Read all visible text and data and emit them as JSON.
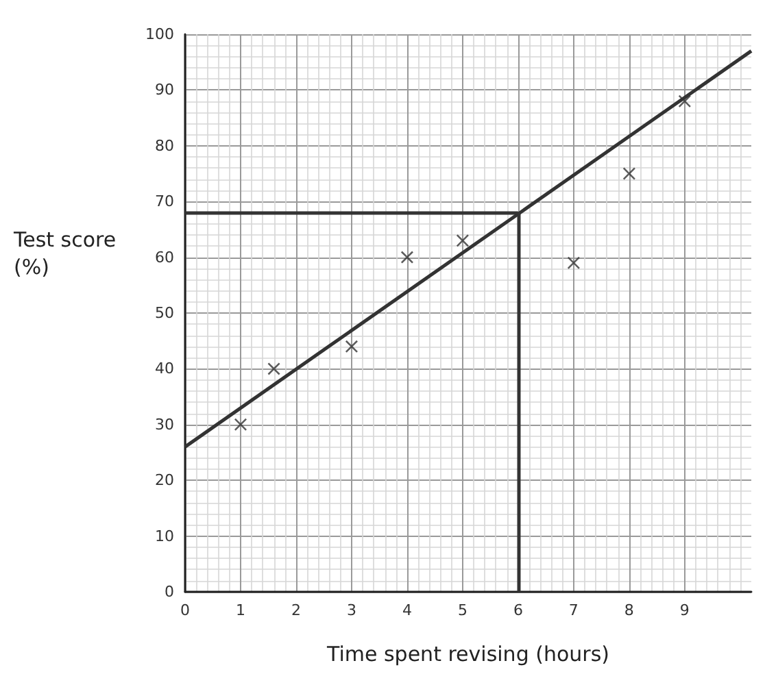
{
  "chart_data": {
    "type": "scatter",
    "xlabel": "Time spent revising (hours)",
    "ylabel": "Test score\n(%)",
    "x": [
      1,
      1.6,
      3,
      4,
      5,
      7,
      8,
      9
    ],
    "series": [
      {
        "type": "scatter",
        "color": "#333333",
        "values": [
          30,
          40,
          44,
          60,
          63,
          59,
          75,
          88
        ],
        "marker": "cross"
      },
      {
        "type": "line",
        "color": "#333333",
        "x": [
          0,
          10.2
        ],
        "values": [
          26,
          97
        ],
        "marker": "none",
        "line_style": "solid"
      }
    ],
    "xlim": [
      0,
      10.2
    ],
    "xticks": [
      0,
      1,
      2,
      3,
      4,
      5,
      6,
      7,
      8,
      9
    ],
    "ylim": [
      0,
      100
    ],
    "yticks": [
      0,
      10,
      20,
      30,
      40,
      50,
      60,
      70,
      80,
      90,
      100
    ],
    "ref_lines": [
      {
        "axis": "y",
        "value": 68,
        "color": "#333333"
      },
      {
        "axis": "x",
        "value": 6,
        "color": "#333333"
      }
    ],
    "grid": true
  }
}
